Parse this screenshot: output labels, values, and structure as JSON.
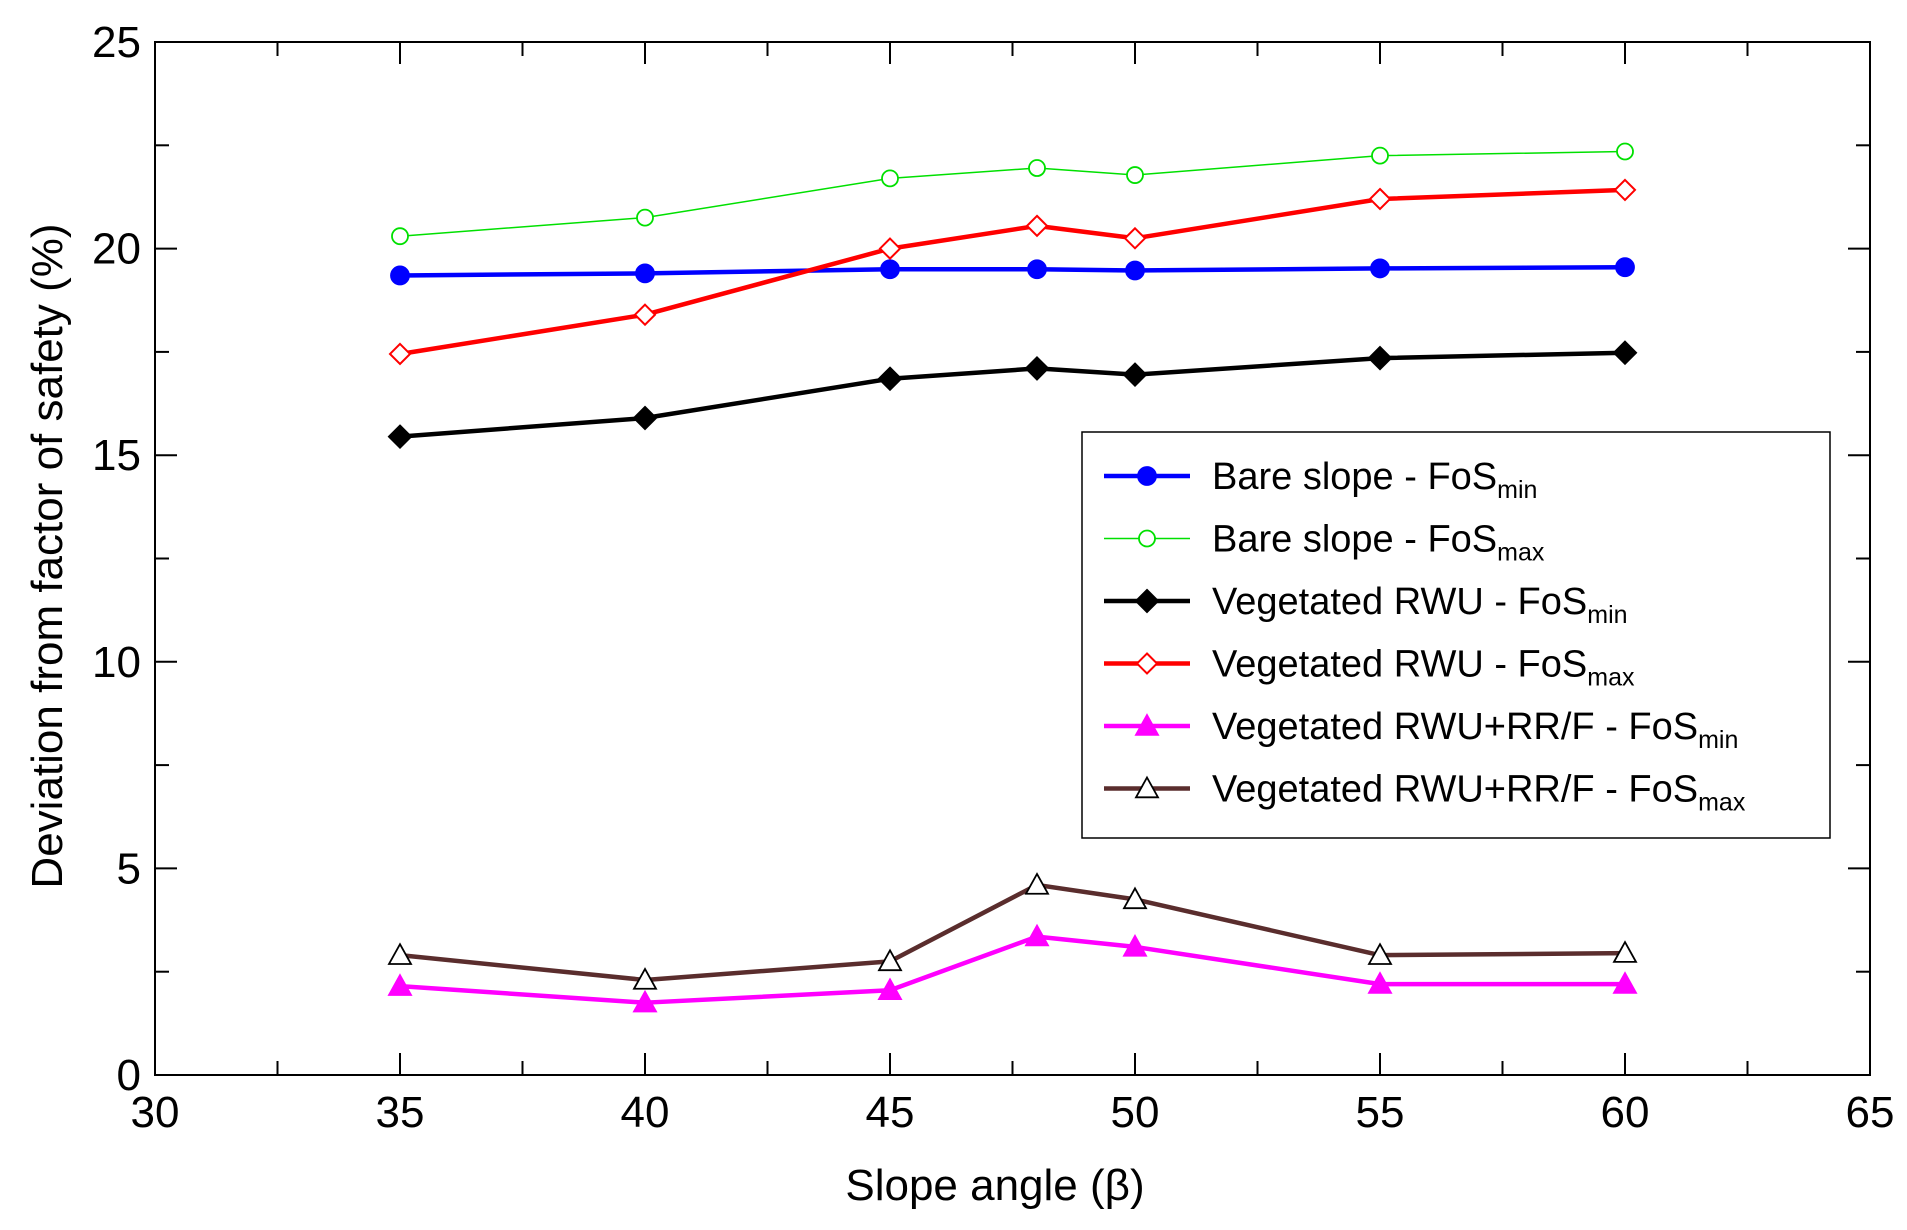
{
  "chart_data": {
    "type": "line",
    "title": "",
    "xlabel": "Slope angle (β)",
    "ylabel": "Deviation from factor of safety (%)",
    "xlim": [
      30,
      65
    ],
    "ylim": [
      0,
      25
    ],
    "xticks": [
      30,
      35,
      40,
      45,
      50,
      55,
      60,
      65
    ],
    "xminor": [
      32.5,
      37.5,
      42.5,
      47.5,
      52.5,
      57.5,
      62.5
    ],
    "yticks": [
      0,
      5,
      10,
      15,
      20,
      25
    ],
    "yminor": [
      2.5,
      7.5,
      12.5,
      17.5,
      22.5
    ],
    "grid": false,
    "legend_position": "center-right",
    "x": [
      35,
      40,
      45,
      48,
      50,
      55,
      60
    ],
    "series": [
      {
        "name": "Bare slope - FoS",
        "sub": "min",
        "color": "#0000ff",
        "marker": "circle",
        "filled": true,
        "values": [
          19.35,
          19.4,
          19.5,
          19.5,
          19.47,
          19.52,
          19.55
        ]
      },
      {
        "name": "Bare slope - FoS",
        "sub": "max",
        "color": "#00e000",
        "marker": "circle",
        "filled": false,
        "values": [
          20.3,
          20.75,
          21.7,
          21.95,
          21.78,
          22.25,
          22.35
        ]
      },
      {
        "name": "Vegetated RWU - FoS",
        "sub": "min",
        "color": "#000000",
        "marker": "diamond",
        "filled": true,
        "values": [
          15.45,
          15.9,
          16.85,
          17.1,
          16.95,
          17.35,
          17.48
        ]
      },
      {
        "name": "Vegetated RWU - FoS",
        "sub": "max",
        "color": "#ff0000",
        "marker": "diamond",
        "filled": false,
        "values": [
          17.45,
          18.4,
          20.0,
          20.55,
          20.25,
          21.2,
          21.42
        ]
      },
      {
        "name": "Vegetated RWU+RR/F - FoS",
        "sub": "min",
        "color": "#ff00ff",
        "marker": "triangle",
        "filled": true,
        "values": [
          2.15,
          1.75,
          2.05,
          3.35,
          3.1,
          2.2,
          2.2
        ]
      },
      {
        "name": "Vegetated RWU+RR/F - FoS",
        "sub": "max",
        "color": "#5a2d2d",
        "marker": "triangle",
        "filled": false,
        "values": [
          2.9,
          2.3,
          2.75,
          4.6,
          4.25,
          2.9,
          2.95
        ]
      }
    ]
  }
}
